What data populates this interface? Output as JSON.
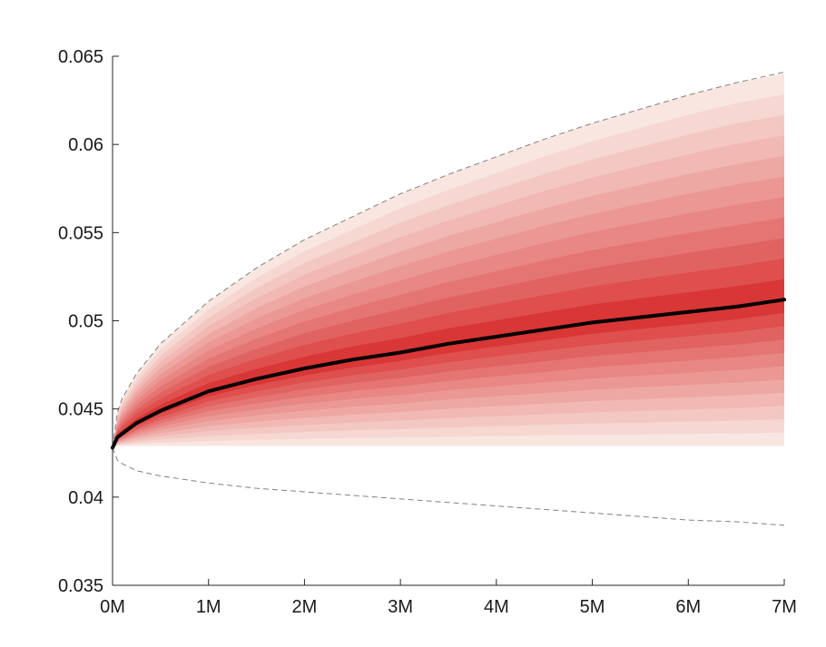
{
  "chart_data": {
    "type": "area",
    "title": "",
    "xlabel": "",
    "ylabel": "",
    "x_ticks": [
      "0M",
      "1M",
      "2M",
      "3M",
      "4M",
      "5M",
      "6M",
      "7M"
    ],
    "y_ticks": [
      "0.035",
      "0.04",
      "0.045",
      "0.05",
      "0.055",
      "0.06",
      "0.065"
    ],
    "xlim": [
      0,
      7
    ],
    "ylim": [
      0.035,
      0.065
    ],
    "grid": false,
    "colors": {
      "median_line": "#000000",
      "band_inner": "#d93636",
      "band_outer": "#f9e6e0",
      "bound_line": "#808080"
    },
    "x": [
      0,
      0.05,
      0.1,
      0.25,
      0.5,
      1,
      1.5,
      2,
      2.5,
      3,
      3.5,
      4,
      4.5,
      5,
      5.5,
      6,
      6.5,
      7
    ],
    "series": [
      {
        "values": [
          0.0428,
          0.0434,
          0.0436,
          0.0442,
          0.0449,
          0.046,
          0.0467,
          0.0473,
          0.0478,
          0.0482,
          0.0487,
          0.0491,
          0.0495,
          0.0499,
          0.0502,
          0.0505,
          0.0508,
          0.0512
        ]
      }
    ],
    "band_bounds": {
      "lower": [
        0.0428,
        0.0429,
        0.0429,
        0.0429,
        0.0429,
        0.0429,
        0.0429,
        0.0429,
        0.0429,
        0.0429,
        0.0429,
        0.0429,
        0.0429,
        0.0429,
        0.0429,
        0.0429,
        0.0429,
        0.0429
      ],
      "upper": [
        0.0428,
        0.0448,
        0.0456,
        0.047,
        0.0487,
        0.0511,
        0.053,
        0.0546,
        0.0559,
        0.0572,
        0.0583,
        0.0593,
        0.0603,
        0.0612,
        0.062,
        0.0628,
        0.0635,
        0.064
      ]
    },
    "band_levels": 11,
    "dashed_bounds": {
      "upper": [
        0.0428,
        0.0448,
        0.0456,
        0.047,
        0.0487,
        0.0511,
        0.053,
        0.0546,
        0.0559,
        0.0572,
        0.0583,
        0.0593,
        0.0603,
        0.0612,
        0.062,
        0.0628,
        0.0635,
        0.0641
      ],
      "lower": [
        0.0428,
        0.0421,
        0.0419,
        0.0415,
        0.0412,
        0.0408,
        0.0405,
        0.0403,
        0.0401,
        0.0399,
        0.0397,
        0.0395,
        0.0393,
        0.0391,
        0.0389,
        0.0387,
        0.0386,
        0.0384
      ]
    }
  }
}
